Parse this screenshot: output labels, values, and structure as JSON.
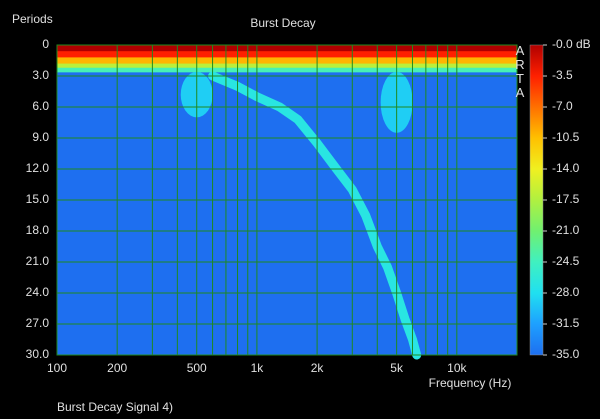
{
  "chart_data": {
    "type": "burst-decay",
    "title": "Burst Decay",
    "ylabel": "Periods",
    "xlabel": "Frequency (Hz)",
    "footer": "Burst Decay Signal 4)",
    "watermark": "ARTA",
    "log_x": true,
    "grid": true,
    "xlim": [
      100,
      20000
    ],
    "xticks": [
      100,
      200,
      500,
      {
        "value": 1000,
        "label": "1k"
      },
      {
        "value": 2000,
        "label": "2k"
      },
      {
        "value": 5000,
        "label": "5k"
      },
      {
        "value": 10000,
        "label": "10k"
      }
    ],
    "xminor": [
      300,
      400,
      600,
      700,
      800,
      900,
      3000,
      4000,
      6000,
      7000,
      8000,
      9000
    ],
    "ylim": [
      0,
      30
    ],
    "yticks": [
      0,
      {
        "value": 3,
        "label": "3.0"
      },
      {
        "value": 6,
        "label": "6.0"
      },
      {
        "value": 9,
        "label": "9.0"
      },
      {
        "value": 12,
        "label": "12.0"
      },
      {
        "value": 15,
        "label": "15.0"
      },
      {
        "value": 18,
        "label": "18.0"
      },
      {
        "value": 21,
        "label": "21.0"
      },
      {
        "value": 24,
        "label": "24.0"
      },
      {
        "value": 27,
        "label": "27.0"
      },
      {
        "value": 30,
        "label": "30.0"
      }
    ],
    "zlim": [
      -35,
      0
    ],
    "zticks": [
      {
        "value": 0,
        "label": "-0.0 dB"
      },
      -3.5,
      {
        "value": -7,
        "label": "-7.0"
      },
      -10.5,
      {
        "value": -14,
        "label": "-14.0"
      },
      -17.5,
      {
        "value": -21,
        "label": "-21.0"
      },
      -24.5,
      {
        "value": -28,
        "label": "-28.0"
      },
      -31.5,
      {
        "value": -35,
        "label": "-35.0"
      }
    ],
    "colorscale": [
      "#1e6ff0",
      "#1ea0ff",
      "#20e0f0",
      "#40f0c0",
      "#70f070",
      "#b0f040",
      "#f0f020",
      "#ffc000",
      "#ff7000",
      "#ff2000",
      "#b00000"
    ],
    "onset": {
      "periods": [
        0,
        0.6,
        1.2,
        1.8,
        2.2,
        2.6
      ],
      "levels": [
        0,
        -3.5,
        -10,
        -17,
        -24,
        -30
      ]
    },
    "ridge": {
      "x": [
        600,
        800,
        1000,
        1300,
        1600,
        2000,
        2500,
        3000,
        3500,
        4000,
        4500,
        5000,
        5500,
        6000,
        6300
      ],
      "periods": [
        3,
        4,
        5,
        6,
        7.2,
        9.5,
        12,
        14,
        16.5,
        19.5,
        21.5,
        24,
        26.5,
        28.5,
        30
      ],
      "level": -27
    },
    "lobes": {
      "x": [
        500,
        5000
      ],
      "depth": [
        7,
        8.5
      ],
      "level": -29
    }
  }
}
